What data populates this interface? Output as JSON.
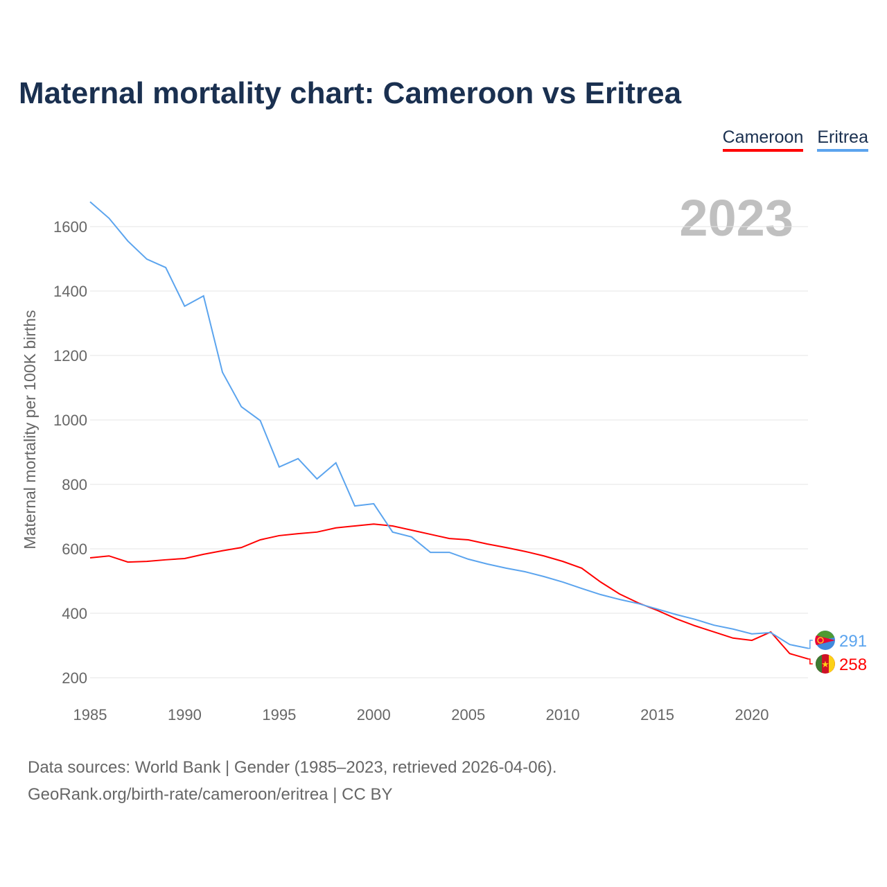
{
  "chart_data": {
    "type": "line",
    "title": "Maternal mortality chart: Cameroon vs Eritrea",
    "xlabel": "",
    "ylabel": "Maternal mortality per 100K births",
    "year_label": "2023",
    "xlim": [
      1985,
      2023
    ],
    "ylim": [
      200,
      1700
    ],
    "grid": true,
    "legend_position": "top-right",
    "x_ticks": [
      1985,
      1990,
      1995,
      2000,
      2005,
      2010,
      2015,
      2020
    ],
    "y_ticks": [
      200,
      400,
      600,
      800,
      1000,
      1200,
      1400,
      1600
    ],
    "x": [
      1985,
      1986,
      1987,
      1988,
      1989,
      1990,
      1991,
      1992,
      1993,
      1994,
      1995,
      1996,
      1997,
      1998,
      1999,
      2000,
      2001,
      2002,
      2003,
      2004,
      2005,
      2006,
      2007,
      2008,
      2009,
      2010,
      2011,
      2012,
      2013,
      2014,
      2015,
      2016,
      2017,
      2018,
      2019,
      2020,
      2021,
      2022,
      2023
    ],
    "series": [
      {
        "name": "Cameroon",
        "color": "#ff0000",
        "end_label": "258",
        "values": [
          572,
          578,
          559,
          561,
          566,
          570,
          583,
          594,
          604,
          628,
          641,
          647,
          652,
          665,
          671,
          677,
          671,
          658,
          645,
          632,
          628,
          615,
          604,
          592,
          578,
          561,
          540,
          497,
          460,
          432,
          409,
          383,
          361,
          342,
          323,
          316,
          342,
          275,
          258
        ]
      },
      {
        "name": "Eritrea",
        "color": "#5ba4ee",
        "end_label": "291",
        "values": [
          1677,
          1626,
          1555,
          1499,
          1473,
          1353,
          1385,
          1148,
          1041,
          998,
          854,
          880,
          817,
          867,
          733,
          740,
          652,
          637,
          589,
          589,
          568,
          553,
          540,
          529,
          514,
          497,
          477,
          458,
          443,
          430,
          413,
          396,
          381,
          363,
          351,
          336,
          340,
          303,
          291
        ]
      }
    ]
  },
  "footer": {
    "line1": "Data sources: World Bank | Gender (1985–2023, retrieved 2026-04-06).",
    "line2": "GeoRank.org/birth-rate/cameroon/eritrea | CC BY"
  }
}
